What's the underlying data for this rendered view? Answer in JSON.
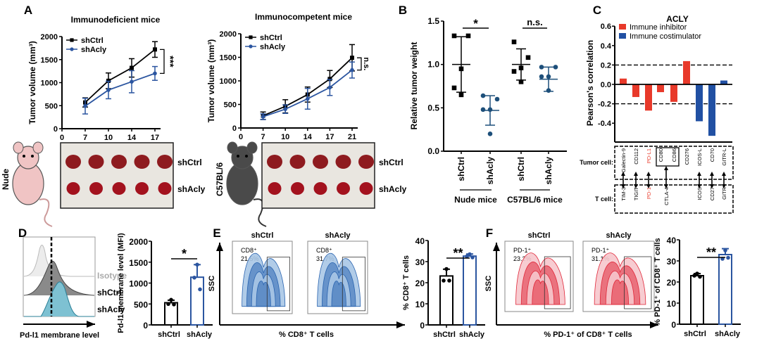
{
  "panel_labels": [
    "A",
    "B",
    "C",
    "D",
    "E",
    "F"
  ],
  "colors": {
    "ctrl": "#000000",
    "acly": "#2b55a0",
    "acly_b": "#1d4f7a",
    "inhibitor": "#e8392a",
    "costimulator": "#2150a3",
    "flow_blue": "#2a64b0",
    "flow_red": "#e0283a",
    "teal": "#3aa0b8"
  },
  "chart_data": [
    {
      "id": "A1",
      "type": "line",
      "title": "Immunodeficient mice",
      "xlabel": "Days",
      "ylabel": "Tumor volume (mm³)",
      "x_ticks": [
        "0",
        "7",
        "10",
        "14",
        "17"
      ],
      "ylim": [
        0,
        2000
      ],
      "y_ticks": [
        "0",
        "500",
        "1000",
        "1500",
        "2000"
      ],
      "series": [
        {
          "name": "shCtrl",
          "x": [
            "7",
            "10",
            "14",
            "17"
          ],
          "values": [
            570,
            1040,
            1320,
            1720
          ],
          "error": [
            100,
            170,
            200,
            170
          ],
          "marker": "square"
        },
        {
          "name": "shAcly",
          "x": [
            "7",
            "10",
            "14",
            "17"
          ],
          "values": [
            490,
            840,
            1020,
            1200
          ],
          "error": [
            170,
            190,
            240,
            150
          ],
          "marker": "circle"
        }
      ],
      "significance": "***"
    },
    {
      "id": "A2",
      "type": "line",
      "title": "Immunocompetent mice",
      "xlabel": "Days",
      "ylabel": "Tumor volume (mm³)",
      "x_ticks": [
        "0",
        "7",
        "10",
        "14",
        "17",
        "21"
      ],
      "ylim": [
        0,
        2000
      ],
      "y_ticks": [
        "0",
        "500",
        "1000",
        "1500",
        "2000"
      ],
      "series": [
        {
          "name": "shCtrl",
          "x": [
            "7",
            "10",
            "14",
            "17",
            "21"
          ],
          "values": [
            260,
            460,
            710,
            1040,
            1490
          ],
          "error": [
            80,
            140,
            160,
            180,
            280
          ],
          "marker": "square"
        },
        {
          "name": "shAcly",
          "x": [
            "7",
            "10",
            "14",
            "17",
            "21"
          ],
          "values": [
            240,
            400,
            620,
            860,
            1230
          ],
          "error": [
            60,
            90,
            220,
            170,
            170
          ],
          "marker": "circle"
        }
      ],
      "significance": "n.s."
    },
    {
      "id": "B",
      "type": "scatter",
      "ylabel": "Relative tumor weight",
      "ylim": [
        0,
        1.5
      ],
      "y_ticks": [
        "0.0",
        "0.5",
        "1.0",
        "1.5"
      ],
      "groups": [
        {
          "label": "shCtrl",
          "points": [
            1.33,
            1.33,
            0.95,
            0.73,
            0.65
          ],
          "mean": 1.0,
          "sd": 0.32,
          "marker": "square"
        },
        {
          "label": "shAcly",
          "points": [
            0.64,
            0.6,
            0.48,
            0.48,
            0.2
          ],
          "mean": 0.47,
          "sd": 0.17,
          "marker": "circle"
        },
        {
          "label": "shCtrl",
          "points": [
            1.26,
            1.08,
            0.96,
            0.92,
            0.8
          ],
          "mean": 1.0,
          "sd": 0.18,
          "marker": "square"
        },
        {
          "label": "shAcly",
          "points": [
            0.97,
            0.97,
            0.86,
            0.86,
            0.7
          ],
          "mean": 0.83,
          "sd": 0.14,
          "marker": "circle"
        }
      ],
      "group_sets": [
        "Nude mice",
        "C57BL/6 mice"
      ],
      "significance": [
        "*",
        "n.s."
      ]
    },
    {
      "id": "C",
      "type": "bar",
      "title": "ACLY",
      "ylabel": "Pearson's correlation",
      "ylim": [
        -0.6,
        0.6
      ],
      "y_ticks": [
        "0.6",
        "0.4",
        "0.2",
        "0.0",
        "-0.2",
        "-0.4"
      ],
      "threshold_lines": [
        0.2,
        -0.2
      ],
      "legend": [
        {
          "name": "Immune inhibitor",
          "color": "#e8392a"
        },
        {
          "name": "Immune costimulator",
          "color": "#2150a3"
        }
      ],
      "legend_position": "top-left",
      "categories": [
        "Galectin-9",
        "CD112",
        "PD-L1",
        "CD80",
        "CD86",
        "CD276",
        "ICOS-L",
        "CD70",
        "GITR-L"
      ],
      "values": [
        0.06,
        -0.13,
        -0.27,
        -0.08,
        -0.18,
        0.24,
        -0.38,
        -0.53,
        0.04
      ],
      "types": [
        "inhibitor",
        "inhibitor",
        "inhibitor",
        "inhibitor",
        "inhibitor",
        "inhibitor",
        "costimulator",
        "costimulator",
        "costimulator"
      ],
      "tumor_cell_label": "Tumor cell:",
      "t_cell_label": "T cell:",
      "t_cell_receptors": [
        "TIM-3",
        "TIGIT",
        "PD-1",
        "CTLA-4",
        "ICOS",
        "CD27",
        "GITR"
      ],
      "highlight": [
        "PD-L1",
        "PD-1"
      ]
    },
    {
      "id": "D",
      "type": "bar",
      "ylabel": "Pd-l1 membrane level (MFI)",
      "ylim": [
        0,
        2000
      ],
      "y_ticks": [
        "0",
        "500",
        "1000",
        "1500",
        "2000"
      ],
      "categories": [
        "shCtrl",
        "shAcly"
      ],
      "values": [
        530,
        1140
      ],
      "error": [
        60,
        300
      ],
      "points": [
        [
          600,
          500,
          490
        ],
        [
          1440,
          1130,
          850
        ]
      ],
      "significance": "*"
    },
    {
      "id": "E",
      "type": "bar",
      "ylabel": "% CD8⁺ T cells",
      "ylim": [
        0,
        40
      ],
      "y_ticks": [
        "0",
        "10",
        "20",
        "30",
        "40"
      ],
      "categories": [
        "shCtrl",
        "shAcly"
      ],
      "values": [
        23.2,
        32.6
      ],
      "error": [
        3.2,
        1.0
      ],
      "points": [
        [
          26.5,
          21,
          21
        ],
        [
          33.5,
          32.5,
          32
        ]
      ],
      "significance": "**"
    },
    {
      "id": "F",
      "type": "bar",
      "ylabel": "% PD-1⁺ of CD8⁺ T cells",
      "ylim": [
        0,
        40
      ],
      "y_ticks": [
        "0",
        "10",
        "20",
        "30",
        "40"
      ],
      "categories": [
        "shCtrl",
        "shAcly"
      ],
      "values": [
        23.0,
        33.0
      ],
      "error": [
        1.0,
        2.8
      ],
      "points": [
        [
          24,
          23,
          22.5
        ],
        [
          35,
          31,
          31.5
        ]
      ],
      "significance": "**"
    }
  ],
  "photos": {
    "nude": {
      "mouse_label": "Nude",
      "rows": [
        "shCtrl",
        "shAcly"
      ]
    },
    "c57": {
      "mouse_label": "C57BL/6",
      "rows": [
        "shCtrl",
        "shAcly"
      ]
    }
  },
  "histogram": {
    "labels": [
      "Isotype",
      "shCtrl",
      "shAcly"
    ],
    "xlabel": "Pd-l1 membrane level"
  },
  "flow_E": {
    "yaxis": "SSC",
    "xlabel": "% CD8⁺ T cells",
    "plots": [
      {
        "title": "shCtrl",
        "gate": "CD8⁺",
        "percent": "21.5%"
      },
      {
        "title": "shAcly",
        "gate": "CD8⁺",
        "percent": "31.7%"
      }
    ]
  },
  "flow_F": {
    "yaxis": "SSC",
    "xlabel": "% PD-1⁺ of CD8⁺ T cells",
    "plots": [
      {
        "title": "shCtrl",
        "gate": "PD-1⁺",
        "percent": "23.2%"
      },
      {
        "title": "shAcly",
        "gate": "PD-1⁺",
        "percent": "31.1%"
      }
    ]
  }
}
